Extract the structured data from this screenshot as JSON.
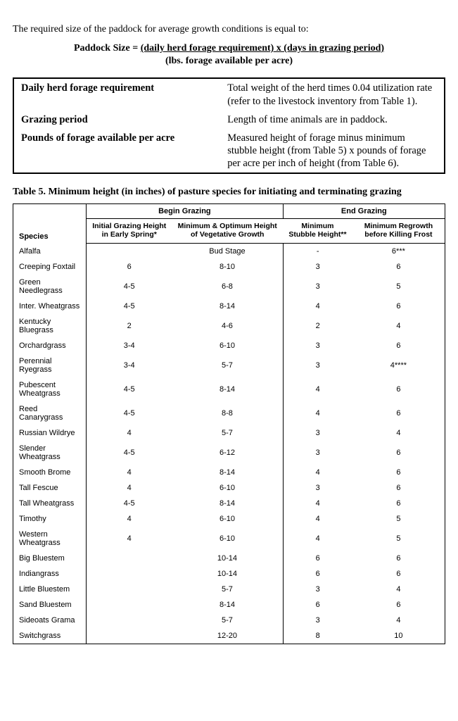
{
  "intro": "The required size of the paddock for average growth conditions is equal to:",
  "formula": {
    "lhs": "Paddock Size =",
    "top": "(daily herd forage requirement) x (days in grazing period)",
    "bottom": "(lbs. forage available per acre)"
  },
  "definitions": [
    {
      "term": "Daily herd forage requirement",
      "desc": "Total weight of the herd times 0.04 utilization rate (refer to the livestock inventory from Table 1)."
    },
    {
      "term": "Grazing period",
      "desc": "Length of time animals are in paddock."
    },
    {
      "term": "Pounds of forage available per acre",
      "desc": "Measured height of forage minus minimum stubble height (from Table 5) x pounds of forage per acre per inch of height (from Table 6)."
    }
  ],
  "table5": {
    "title": "Table 5.  Minimum height (in inches) of pasture species for initiating and terminating grazing",
    "group_headers": {
      "begin": "Begin Grazing",
      "end": "End Grazing"
    },
    "sub_headers": {
      "species": "Species",
      "c1": "Initial Grazing Height in Early Spring*",
      "c2": "Minimum & Optimum Height of Vegetative Growth",
      "c3": "Minimum Stubble Height**",
      "c4": "Minimum Regrowth before Killing Frost"
    },
    "rows": [
      {
        "species": "Alfalfa",
        "c1": "",
        "c2": "Bud Stage",
        "c3": "-",
        "c4": "6***"
      },
      {
        "species": "Creeping Foxtail",
        "c1": "6",
        "c2": "8-10",
        "c3": "3",
        "c4": "6"
      },
      {
        "species": "Green Needlegrass",
        "c1": "4-5",
        "c2": "6-8",
        "c3": "3",
        "c4": "5"
      },
      {
        "species": "Inter. Wheatgrass",
        "c1": "4-5",
        "c2": "8-14",
        "c3": "4",
        "c4": "6"
      },
      {
        "species": "Kentucky Bluegrass",
        "c1": "2",
        "c2": "4-6",
        "c3": "2",
        "c4": "4"
      },
      {
        "species": "Orchardgrass",
        "c1": "3-4",
        "c2": "6-10",
        "c3": "3",
        "c4": "6"
      },
      {
        "species": "Perennial Ryegrass",
        "c1": "3-4",
        "c2": "5-7",
        "c3": "3",
        "c4": "4****"
      },
      {
        "species": "Pubescent Wheatgrass",
        "c1": "4-5",
        "c2": "8-14",
        "c3": "4",
        "c4": "6"
      },
      {
        "species": "Reed Canarygrass",
        "c1": "4-5",
        "c2": "8-8",
        "c3": "4",
        "c4": "6"
      },
      {
        "species": "Russian Wildrye",
        "c1": "4",
        "c2": "5-7",
        "c3": "3",
        "c4": "4"
      },
      {
        "species": "Slender Wheatgrass",
        "c1": "4-5",
        "c2": "6-12",
        "c3": "3",
        "c4": "6"
      },
      {
        "species": "Smooth Brome",
        "c1": "4",
        "c2": "8-14",
        "c3": "4",
        "c4": "6"
      },
      {
        "species": "Tall Fescue",
        "c1": "4",
        "c2": "6-10",
        "c3": "3",
        "c4": "6"
      },
      {
        "species": "Tall Wheatgrass",
        "c1": "4-5",
        "c2": "8-14",
        "c3": "4",
        "c4": "6"
      },
      {
        "species": "Timothy",
        "c1": "4",
        "c2": "6-10",
        "c3": "4",
        "c4": "5"
      },
      {
        "species": "Western Wheatgrass",
        "c1": "4",
        "c2": "6-10",
        "c3": "4",
        "c4": "5"
      },
      {
        "species": "Big Bluestem",
        "c1": "",
        "c2": "10-14",
        "c3": "6",
        "c4": "6"
      },
      {
        "species": "Indiangrass",
        "c1": "",
        "c2": "10-14",
        "c3": "6",
        "c4": "6"
      },
      {
        "species": "Little Bluestem",
        "c1": "",
        "c2": "5-7",
        "c3": "3",
        "c4": "4"
      },
      {
        "species": "Sand Bluestem",
        "c1": "",
        "c2": "8-14",
        "c3": "6",
        "c4": "6"
      },
      {
        "species": "Sideoats Grama",
        "c1": "",
        "c2": "5-7",
        "c3": "3",
        "c4": "4"
      },
      {
        "species": "Switchgrass",
        "c1": "",
        "c2": "12-20",
        "c3": "8",
        "c4": "10"
      }
    ]
  }
}
